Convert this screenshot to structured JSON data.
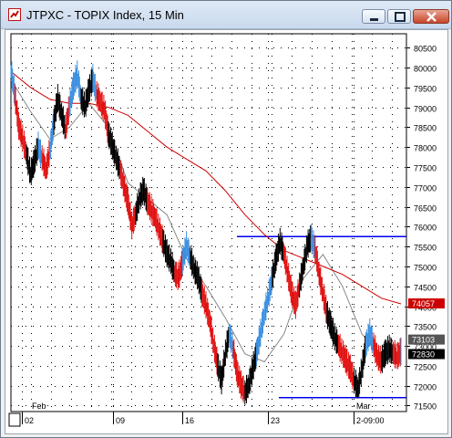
{
  "window": {
    "title": "JTPXC - TOPIX Index, 15 Min",
    "buttons": [
      "minimize",
      "maximize",
      "close"
    ]
  },
  "chart_data": {
    "type": "line",
    "title": "",
    "xlabel": "",
    "ylabel": "",
    "ylim": [
      71350,
      80850
    ],
    "y_ticks": [
      71500,
      72000,
      72500,
      73000,
      73500,
      74000,
      74500,
      75000,
      75500,
      76000,
      76500,
      77000,
      77500,
      78000,
      78500,
      79000,
      79500,
      80000,
      80500
    ],
    "x_tick_labels": [
      "02",
      "09",
      "16",
      "23",
      "2-09:00"
    ],
    "x_month_labels": [
      "Feb",
      "Mar"
    ],
    "grid": true,
    "price_labels": [
      {
        "label": "74057",
        "value": 74057,
        "color": "#cc0000"
      },
      {
        "label": "73103",
        "value": 73103,
        "color": "#555555"
      },
      {
        "label": "72830",
        "value": 72830,
        "color": "#000000"
      }
    ],
    "horizontal_lines": [
      {
        "value": 75750,
        "color": "#0000ee"
      },
      {
        "value": 71700,
        "color": "#0000ee"
      }
    ],
    "series": [
      {
        "kind": "price",
        "x": [
          0,
          2,
          4,
          6,
          8,
          10,
          12,
          14,
          16,
          18,
          20,
          22,
          24,
          26,
          28,
          30,
          32,
          34,
          36,
          38,
          40,
          42,
          44,
          46,
          48,
          50,
          52,
          54,
          56,
          58,
          60,
          62,
          64,
          66,
          68,
          70,
          72,
          74,
          76,
          78,
          80,
          82,
          84,
          86,
          88,
          90,
          92,
          94,
          96,
          98,
          100,
          102,
          104,
          106,
          108,
          110,
          112,
          114,
          116,
          118,
          120,
          122,
          124,
          126,
          128,
          130,
          132,
          134,
          136,
          138,
          140,
          142,
          144,
          146,
          148,
          150,
          152,
          154,
          156,
          158,
          160,
          162,
          164,
          166,
          168,
          170,
          172,
          174,
          176,
          178,
          180,
          182,
          184,
          186,
          188,
          190,
          192,
          194,
          196,
          198,
          200
        ],
        "y": [
          79900,
          79300,
          78500,
          78200,
          77800,
          77300,
          77600,
          78000,
          77700,
          77400,
          77900,
          78600,
          79200,
          78800,
          78400,
          79000,
          79500,
          79800,
          79200,
          79000,
          79400,
          79700,
          79300,
          79100,
          78900,
          78300,
          78000,
          77700,
          77400,
          77000,
          76600,
          76000,
          76300,
          76700,
          76900,
          76600,
          76400,
          76200,
          75900,
          75600,
          75300,
          75100,
          74800,
          74700,
          75100,
          75500,
          75200,
          74900,
          74700,
          74300,
          74000,
          73600,
          73000,
          72500,
          72100,
          72800,
          73300,
          72900,
          72300,
          72000,
          71800,
          72000,
          72400,
          72800,
          73300,
          73800,
          74200,
          74700,
          75200,
          75600,
          75300,
          74800,
          74300,
          74000,
          74500,
          75000,
          75500,
          75700,
          75400,
          74800,
          74300,
          73800,
          73500,
          73200,
          73000,
          72800,
          72600,
          72400,
          72100,
          71900,
          72400,
          73000,
          73300,
          73000,
          72700,
          72600,
          72800,
          72900,
          72800,
          72700,
          72830
        ]
      },
      {
        "kind": "moving-average-short",
        "color": "#888888",
        "x": [
          0,
          10,
          20,
          30,
          40,
          50,
          60,
          70,
          80,
          90,
          100,
          110,
          120,
          130,
          140,
          150,
          160,
          170,
          180,
          190,
          200
        ],
        "y": [
          79700,
          78900,
          78200,
          78500,
          79100,
          78500,
          77100,
          76700,
          76300,
          75200,
          74500,
          73700,
          72800,
          72600,
          73300,
          74700,
          75300,
          74500,
          73300,
          72700,
          73103
        ]
      },
      {
        "kind": "moving-average-long",
        "color": "#cc0000",
        "x": [
          0,
          10,
          20,
          30,
          40,
          50,
          60,
          70,
          80,
          90,
          100,
          110,
          120,
          130,
          140,
          150,
          160,
          170,
          180,
          190,
          200
        ],
        "y": [
          79900,
          79500,
          79200,
          79100,
          79100,
          79000,
          78800,
          78400,
          78000,
          77700,
          77400,
          76900,
          76300,
          75800,
          75400,
          75200,
          75000,
          74800,
          74500,
          74200,
          74057
        ]
      }
    ]
  }
}
